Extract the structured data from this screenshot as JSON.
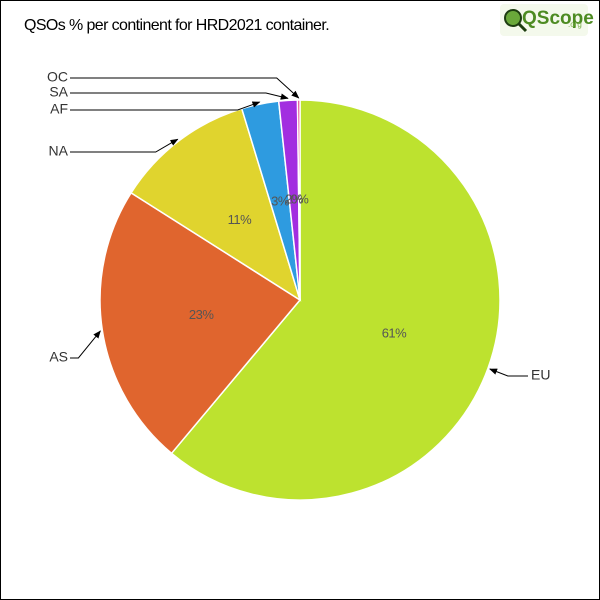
{
  "logo": {
    "name": "QScope",
    "suffix": ".org"
  },
  "chart_data": {
    "type": "pie",
    "title": "QSOs % per continent for HRD2021 container.",
    "categories": [
      "EU",
      "AS",
      "NA",
      "AF",
      "SA",
      "OC"
    ],
    "values": [
      61.1,
      22.9,
      11.3,
      3.0,
      1.5,
      0.2
    ],
    "value_labels": [
      "61%",
      "23%",
      "11%",
      "3%",
      "2%",
      "0%"
    ],
    "colors": [
      "#bde22f",
      "#e0652e",
      "#e0d42e",
      "#2e9be0",
      "#a22ee0",
      "#e02e7c"
    ]
  }
}
